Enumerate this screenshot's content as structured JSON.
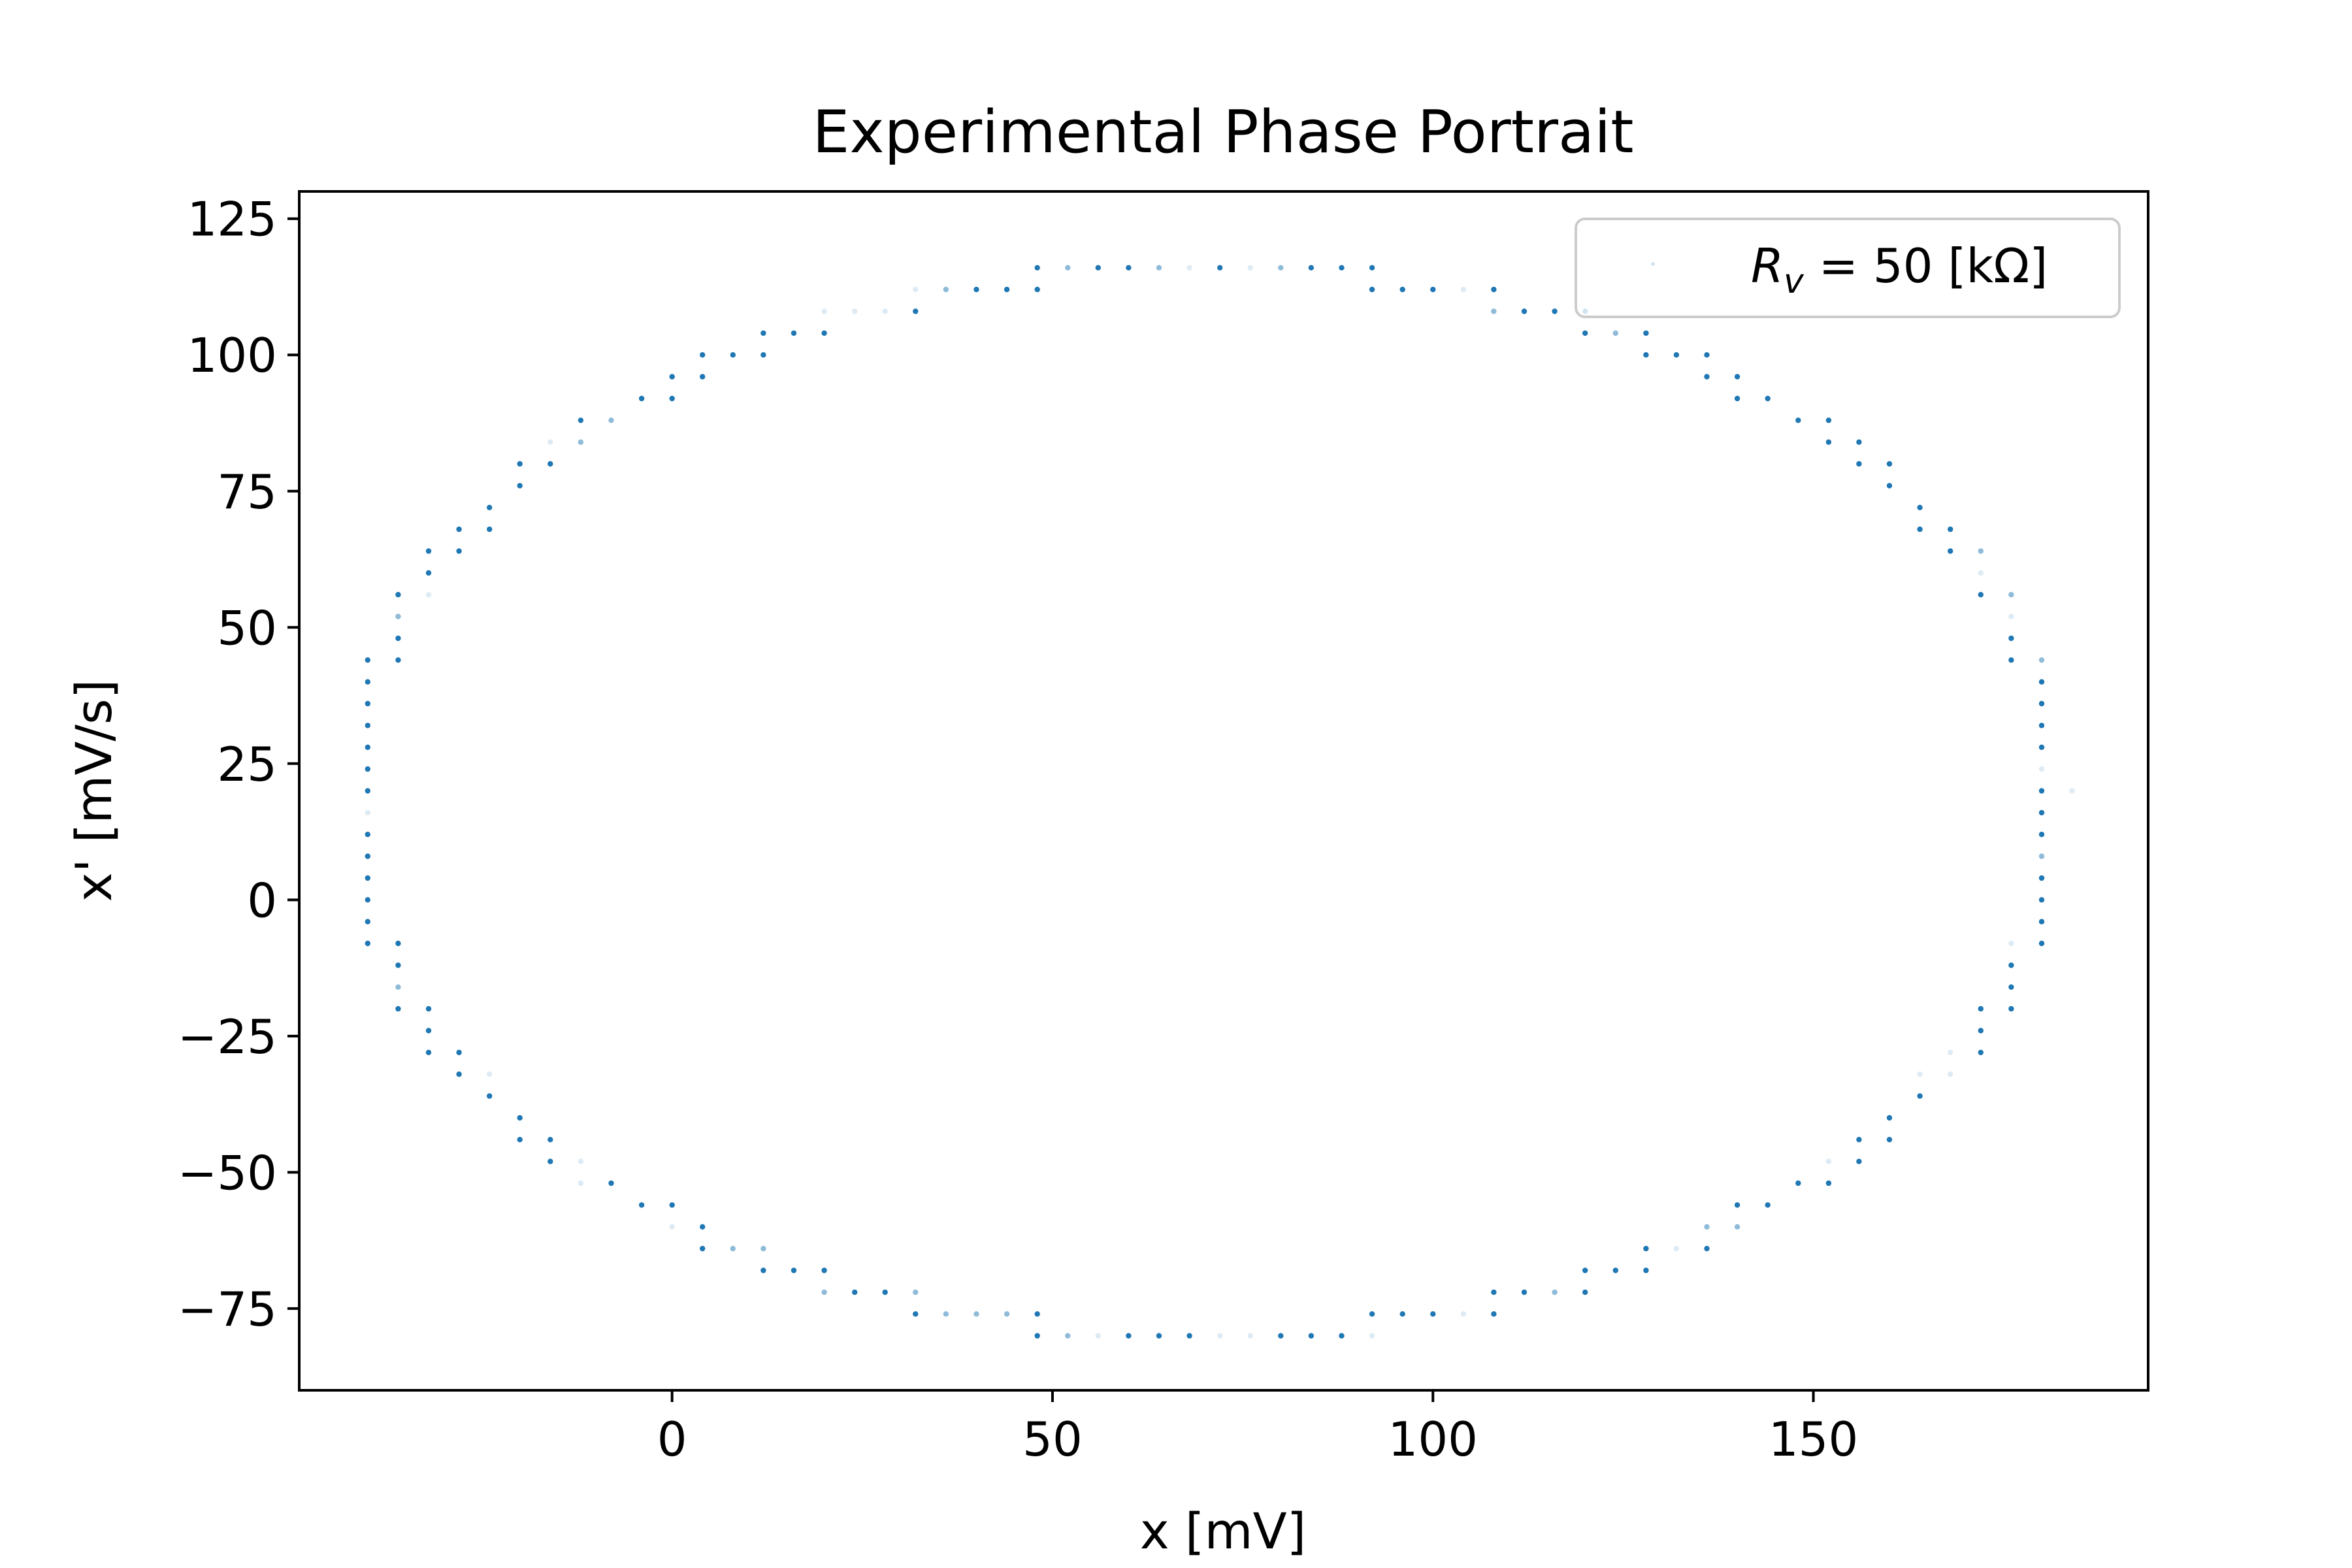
{
  "chart_data": {
    "type": "scatter",
    "title": "Experimental Phase Portrait",
    "xlabel": "x [mV]",
    "ylabel": "x' [mV/s]",
    "xlim": [
      -49,
      194
    ],
    "ylim": [
      -90,
      130
    ],
    "xticks": [
      0,
      50,
      100,
      150
    ],
    "xtick_labels": [
      "0",
      "50",
      "100",
      "150"
    ],
    "yticks": [
      -75,
      -50,
      -25,
      0,
      25,
      50,
      75,
      100,
      125
    ],
    "ytick_labels": [
      "−75",
      "−50",
      "−25",
      "0",
      "25",
      "50",
      "75",
      "100",
      "125"
    ],
    "grid": false,
    "legend": {
      "position": "top-right",
      "entries": [
        {
          "label_symbol": "R",
          "label_subscript": "v",
          "label_rest": " = 50 [kΩ]"
        }
      ]
    },
    "series": [
      {
        "marker": "dot",
        "color": "#1f77b4",
        "x_step": 4,
        "y_step": 4,
        "ellipse": {
          "center_x": 70,
          "center_y": 18,
          "semi_axis_x": 112,
          "semi_axis_y": 98
        },
        "x_range": [
          -38,
          182
        ],
        "y_range": [
          -80,
          120
        ]
      }
    ]
  }
}
